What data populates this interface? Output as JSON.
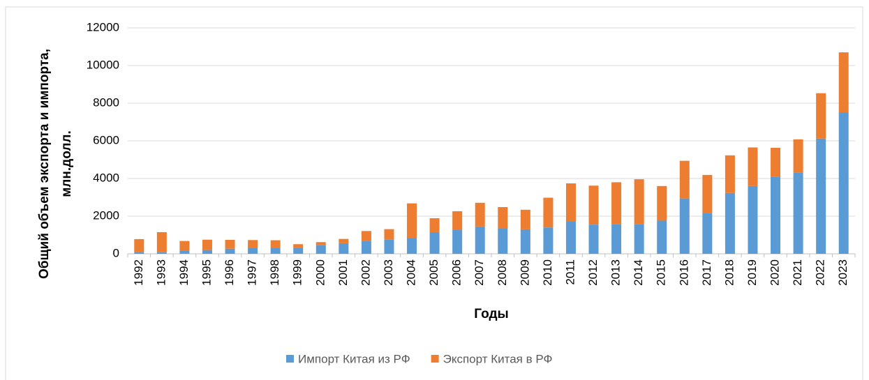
{
  "chart_data": {
    "type": "stacked_bar",
    "y_label": [
      "Общий объем экспорта и импорта,",
      "млн.долл."
    ],
    "x_label": "Годы",
    "categories": [
      "1992",
      "1993",
      "1994",
      "1995",
      "1996",
      "1997",
      "1998",
      "1999",
      "2000",
      "2001",
      "2002",
      "2003",
      "2004",
      "2005",
      "2006",
      "2007",
      "2008",
      "2009",
      "2010",
      "2011",
      "2012",
      "2013",
      "2014",
      "2015",
      "2016",
      "2017",
      "2018",
      "2019",
      "2020",
      "2021",
      "2022",
      "2023"
    ],
    "series": [
      {
        "name": "Импорт Китая из РФ",
        "color": "#5b9bd5",
        "values": [
          100,
          80,
          170,
          200,
          270,
          330,
          330,
          320,
          450,
          560,
          680,
          750,
          850,
          1150,
          1280,
          1450,
          1350,
          1300,
          1400,
          1720,
          1550,
          1580,
          1570,
          1760,
          2940,
          2150,
          3230,
          3600,
          4100,
          4300,
          6120,
          7500
        ]
      },
      {
        "name": "Экспорт Китая в РФ",
        "color": "#ed7d31",
        "values": [
          680,
          1070,
          510,
          550,
          470,
          400,
          390,
          190,
          170,
          230,
          530,
          560,
          1830,
          740,
          980,
          1260,
          1130,
          1040,
          1580,
          2020,
          2070,
          2220,
          2390,
          1840,
          2000,
          2040,
          2000,
          2050,
          1530,
          1780,
          2410,
          3200
        ]
      }
    ],
    "ylim": [
      0,
      12000
    ],
    "yticks": [
      0,
      2000,
      4000,
      6000,
      8000,
      10000,
      12000
    ],
    "grid": true,
    "legend": "bottom"
  }
}
